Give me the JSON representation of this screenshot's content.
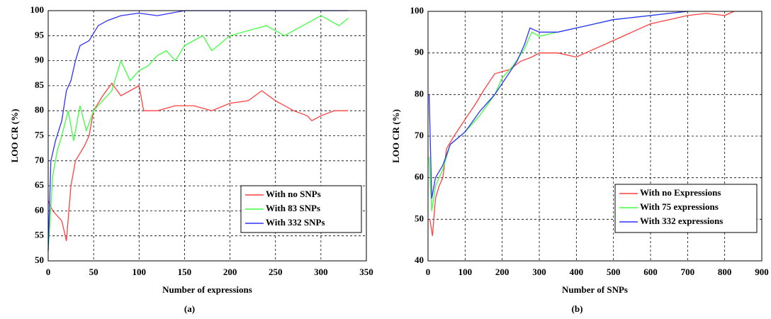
{
  "chart_data": [
    {
      "type": "line",
      "xlabel": "Number of expressions",
      "ylabel": "LOO CR (%)",
      "caption": "(a)",
      "xlim": [
        0,
        350
      ],
      "ylim": [
        50,
        100
      ],
      "xticks": [
        0,
        50,
        100,
        150,
        200,
        250,
        300,
        350
      ],
      "yticks": [
        50,
        55,
        60,
        65,
        70,
        75,
        80,
        85,
        90,
        95,
        100
      ],
      "grid": true,
      "legend": "lower right",
      "series": [
        {
          "name": "With no SNPs",
          "color": "#ff4040",
          "x": [
            0,
            5,
            15,
            20,
            25,
            30,
            40,
            45,
            50,
            60,
            70,
            80,
            90,
            100,
            105,
            120,
            140,
            160,
            180,
            200,
            220,
            235,
            250,
            270,
            285,
            290,
            300,
            315,
            330
          ],
          "values": [
            62,
            60,
            58,
            54,
            65,
            70,
            73,
            75,
            80,
            83,
            85.5,
            83,
            84,
            85,
            80,
            80,
            81,
            81,
            80,
            81.5,
            82,
            84,
            82,
            80,
            79,
            78,
            79,
            80,
            80
          ]
        },
        {
          "name": "With 83 SNPs",
          "color": "#40ff40",
          "x": [
            0,
            5,
            10,
            15,
            22,
            28,
            35,
            42,
            50,
            60,
            70,
            80,
            90,
            100,
            110,
            120,
            130,
            140,
            150,
            170,
            180,
            200,
            220,
            240,
            260,
            280,
            300,
            310,
            320,
            330
          ],
          "values": [
            52,
            67,
            72,
            75,
            80,
            74,
            81,
            76,
            80,
            82,
            84,
            90,
            86,
            88,
            89,
            91,
            92,
            90,
            93,
            95,
            92,
            95,
            96,
            97,
            95,
            97,
            99,
            98,
            97,
            98.5
          ]
        },
        {
          "name": "With 332 SNPs",
          "color": "#3030ff",
          "x": [
            0,
            3,
            8,
            15,
            20,
            25,
            30,
            35,
            45,
            55,
            65,
            80,
            100,
            120,
            150,
            200,
            250,
            300,
            330
          ],
          "values": [
            52,
            70,
            74,
            78,
            84,
            86,
            90,
            93,
            94,
            97,
            98,
            99,
            99.5,
            99,
            100,
            100,
            100,
            100,
            100
          ]
        }
      ]
    },
    {
      "type": "line",
      "xlabel": "Number of SNPs",
      "ylabel": "LOO CR (%)",
      "caption": "(b)",
      "xlim": [
        0,
        900
      ],
      "ylim": [
        40,
        100
      ],
      "xticks": [
        0,
        100,
        200,
        300,
        400,
        500,
        600,
        700,
        800,
        900
      ],
      "yticks": [
        40,
        50,
        60,
        70,
        80,
        90,
        100
      ],
      "grid": true,
      "legend": "lower right",
      "series": [
        {
          "name": "With no Expressions",
          "color": "#ff4040",
          "x": [
            5,
            12,
            20,
            30,
            40,
            50,
            70,
            100,
            130,
            150,
            180,
            220,
            250,
            280,
            300,
            350,
            400,
            450,
            500,
            550,
            600,
            650,
            700,
            750,
            800,
            825
          ],
          "values": [
            50,
            46,
            55,
            58,
            60,
            67,
            70,
            74,
            78,
            81,
            85,
            86,
            88,
            89,
            90,
            90,
            89,
            91,
            93,
            95,
            97,
            98,
            99,
            99.5,
            99,
            100
          ]
        },
        {
          "name": "With 75 expressions",
          "color": "#40ff40",
          "x": [
            3,
            10,
            20,
            40,
            60,
            100,
            140,
            180,
            200,
            230,
            260,
            280,
            300,
            350,
            400,
            450,
            500,
            550,
            600,
            650,
            700
          ],
          "values": [
            65,
            52,
            58,
            62,
            68,
            71,
            75,
            80,
            84,
            87,
            91,
            95,
            94,
            95,
            96,
            97,
            98,
            98.5,
            99,
            99.5,
            100
          ]
        },
        {
          "name": "With 332 expressions",
          "color": "#3030ff",
          "x": [
            3,
            10,
            20,
            40,
            60,
            100,
            140,
            180,
            210,
            240,
            260,
            275,
            300,
            350,
            400,
            450,
            500,
            550,
            600,
            650,
            700
          ],
          "values": [
            80,
            55,
            60,
            63,
            68,
            71,
            76,
            80,
            84,
            88,
            92,
            96,
            95,
            95,
            96,
            97,
            98,
            98.5,
            99,
            99.5,
            100
          ]
        }
      ]
    }
  ]
}
